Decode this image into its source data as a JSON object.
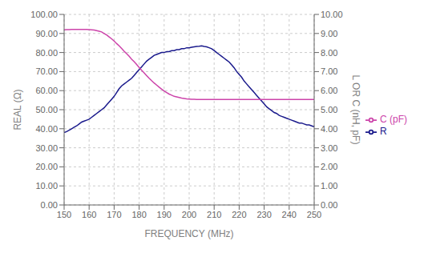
{
  "chart_data": {
    "type": "line",
    "xlabel": "FREQUENCY (MHz)",
    "ylabel": "REAL (Ω)",
    "y2label": "L OR C (nH, pF)",
    "x": [
      150,
      151,
      152,
      153,
      154,
      155,
      156,
      157,
      158,
      159,
      160,
      161,
      162,
      163,
      164,
      165,
      166,
      167,
      168,
      169,
      170,
      171,
      172,
      173,
      174,
      175,
      176,
      177,
      178,
      179,
      180,
      181,
      182,
      183,
      184,
      185,
      186,
      187,
      188,
      189,
      190,
      191,
      192,
      193,
      194,
      195,
      196,
      197,
      198,
      199,
      200,
      201,
      202,
      203,
      204,
      205,
      206,
      207,
      208,
      209,
      210,
      211,
      212,
      213,
      214,
      215,
      216,
      217,
      218,
      219,
      220,
      221,
      222,
      223,
      224,
      225,
      226,
      227,
      228,
      229,
      230,
      231,
      232,
      233,
      234,
      235,
      236,
      237,
      238,
      239,
      240,
      241,
      242,
      243,
      244,
      245,
      246,
      247,
      248,
      249,
      250
    ],
    "series": [
      {
        "name": "R",
        "color": "#1a1a8c",
        "values": [
          38.0,
          38.5,
          39.2,
          40.0,
          40.8,
          41.5,
          42.5,
          43.5,
          44.0,
          44.5,
          45.0,
          46.0,
          47.0,
          48.0,
          49.0,
          50.0,
          51.0,
          52.5,
          54.0,
          55.5,
          57.0,
          59.0,
          61.0,
          62.5,
          63.5,
          64.5,
          65.5,
          66.5,
          68.0,
          69.5,
          71.0,
          72.5,
          74.0,
          75.5,
          76.5,
          77.5,
          78.5,
          79.0,
          79.5,
          80.0,
          80.0,
          80.5,
          80.5,
          81.0,
          81.0,
          81.5,
          81.5,
          82.0,
          82.0,
          82.5,
          82.5,
          82.8,
          83.0,
          83.2,
          83.3,
          83.5,
          83.2,
          83.0,
          82.5,
          82.0,
          81.0,
          80.0,
          79.0,
          78.0,
          77.0,
          76.0,
          75.0,
          73.5,
          72.0,
          70.0,
          68.5,
          67.0,
          65.0,
          63.5,
          62.0,
          60.5,
          59.0,
          57.5,
          56.0,
          54.5,
          53.0,
          51.5,
          50.5,
          49.5,
          48.5,
          48.0,
          47.0,
          46.5,
          46.0,
          45.5,
          45.0,
          44.5,
          44.0,
          43.5,
          43.0,
          43.0,
          42.5,
          42.0,
          42.0,
          41.5,
          41.0
        ]
      },
      {
        "name": "C (pF)",
        "color": "#cc44aa",
        "axis": "y2",
        "values": [
          9.19,
          9.2,
          9.2,
          9.21,
          9.21,
          9.21,
          9.21,
          9.21,
          9.21,
          9.21,
          9.2,
          9.19,
          9.18,
          9.15,
          9.12,
          9.08,
          9.0,
          8.92,
          8.82,
          8.72,
          8.6,
          8.47,
          8.35,
          8.21,
          8.07,
          7.94,
          7.8,
          7.65,
          7.52,
          7.37,
          7.22,
          7.07,
          6.93,
          6.79,
          6.65,
          6.52,
          6.4,
          6.29,
          6.18,
          6.08,
          5.98,
          5.9,
          5.82,
          5.76,
          5.7,
          5.67,
          5.64,
          5.61,
          5.59,
          5.57,
          5.56,
          5.55,
          5.55,
          5.54,
          5.54,
          5.54,
          5.54,
          5.54,
          5.54,
          5.54,
          5.54,
          5.54,
          5.54,
          5.54,
          5.54,
          5.54,
          5.54,
          5.54,
          5.54,
          5.54,
          5.54,
          5.54,
          5.54,
          5.54,
          5.54,
          5.54,
          5.54,
          5.54,
          5.54,
          5.54,
          5.54,
          5.54,
          5.54,
          5.54,
          5.54,
          5.54,
          5.54,
          5.54,
          5.54,
          5.54,
          5.54,
          5.54,
          5.54,
          5.54,
          5.54,
          5.54,
          5.54,
          5.54,
          5.54,
          5.54,
          5.54
        ]
      }
    ],
    "xlim": [
      150,
      250
    ],
    "xticks": [
      150,
      160,
      170,
      180,
      190,
      200,
      210,
      220,
      230,
      240,
      250
    ],
    "ylim": [
      0,
      100
    ],
    "yticks": [
      {
        "value": 0,
        "label": "0.00"
      },
      {
        "value": 10,
        "label": "10.00"
      },
      {
        "value": 20,
        "label": "20.00"
      },
      {
        "value": 30,
        "label": "30.00"
      },
      {
        "value": 40,
        "label": "40.00"
      },
      {
        "value": 50,
        "label": "50.00"
      },
      {
        "value": 60,
        "label": "60.00"
      },
      {
        "value": 70,
        "label": "70.00"
      },
      {
        "value": 80,
        "label": "80.00"
      },
      {
        "value": 90,
        "label": "90.00"
      },
      {
        "value": 100,
        "label": "100.00"
      }
    ],
    "y2lim": [
      0,
      10
    ],
    "y2ticks": [
      {
        "value": 0,
        "label": "0.00"
      },
      {
        "value": 1,
        "label": "1.00"
      },
      {
        "value": 2,
        "label": "2.00"
      },
      {
        "value": 3,
        "label": "3.00"
      },
      {
        "value": 4,
        "label": "4.00"
      },
      {
        "value": 5,
        "label": "5.00"
      },
      {
        "value": 6,
        "label": "6.00"
      },
      {
        "value": 7,
        "label": "7.00"
      },
      {
        "value": 8,
        "label": "8.00"
      },
      {
        "value": 9,
        "label": "9.00"
      },
      {
        "value": 10,
        "label": "10.00"
      }
    ],
    "grid": true,
    "legend": "right"
  }
}
